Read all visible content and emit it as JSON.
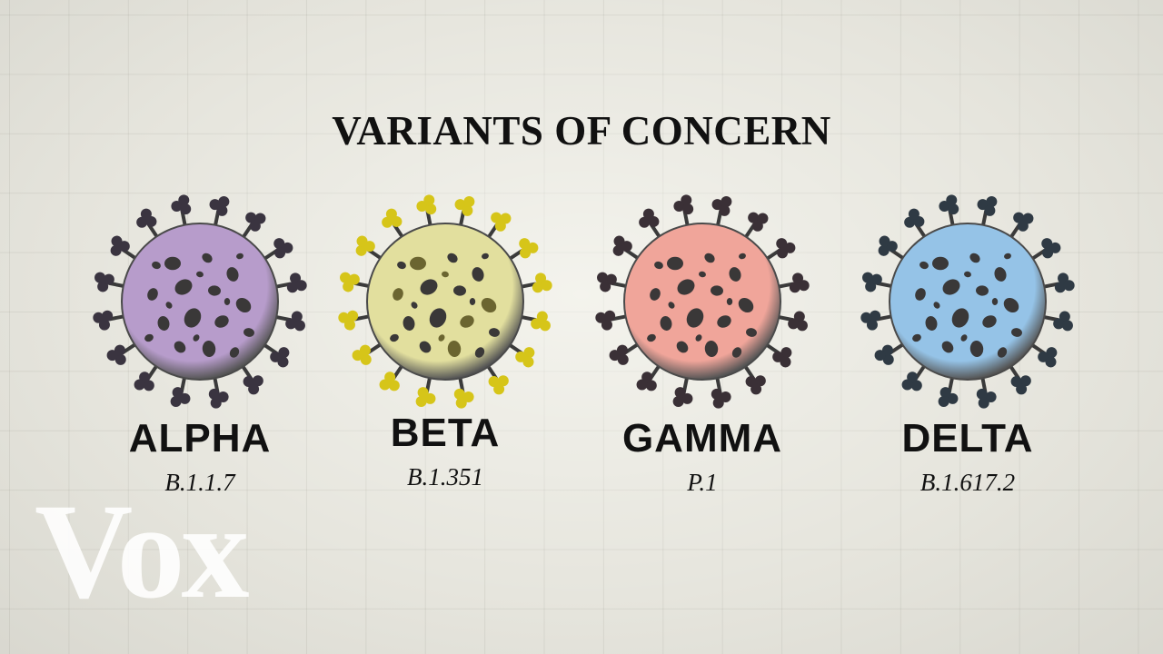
{
  "title": "VARIANTS OF CONCERN",
  "logo": "Vox",
  "variants": [
    {
      "name": "ALPHA",
      "code": "B.1.1.7",
      "color": "#b79ccb",
      "spike_color": "#3a3440"
    },
    {
      "name": "BETA",
      "code": "B.1.351",
      "color": "#e2df9e",
      "spike_color": "#d6c519"
    },
    {
      "name": "GAMMA",
      "code": "P.1",
      "color": "#f0a59a",
      "spike_color": "#3a3036"
    },
    {
      "name": "DELTA",
      "code": "B.1.617.2",
      "color": "#95c3e7",
      "spike_color": "#2f3a44"
    }
  ]
}
